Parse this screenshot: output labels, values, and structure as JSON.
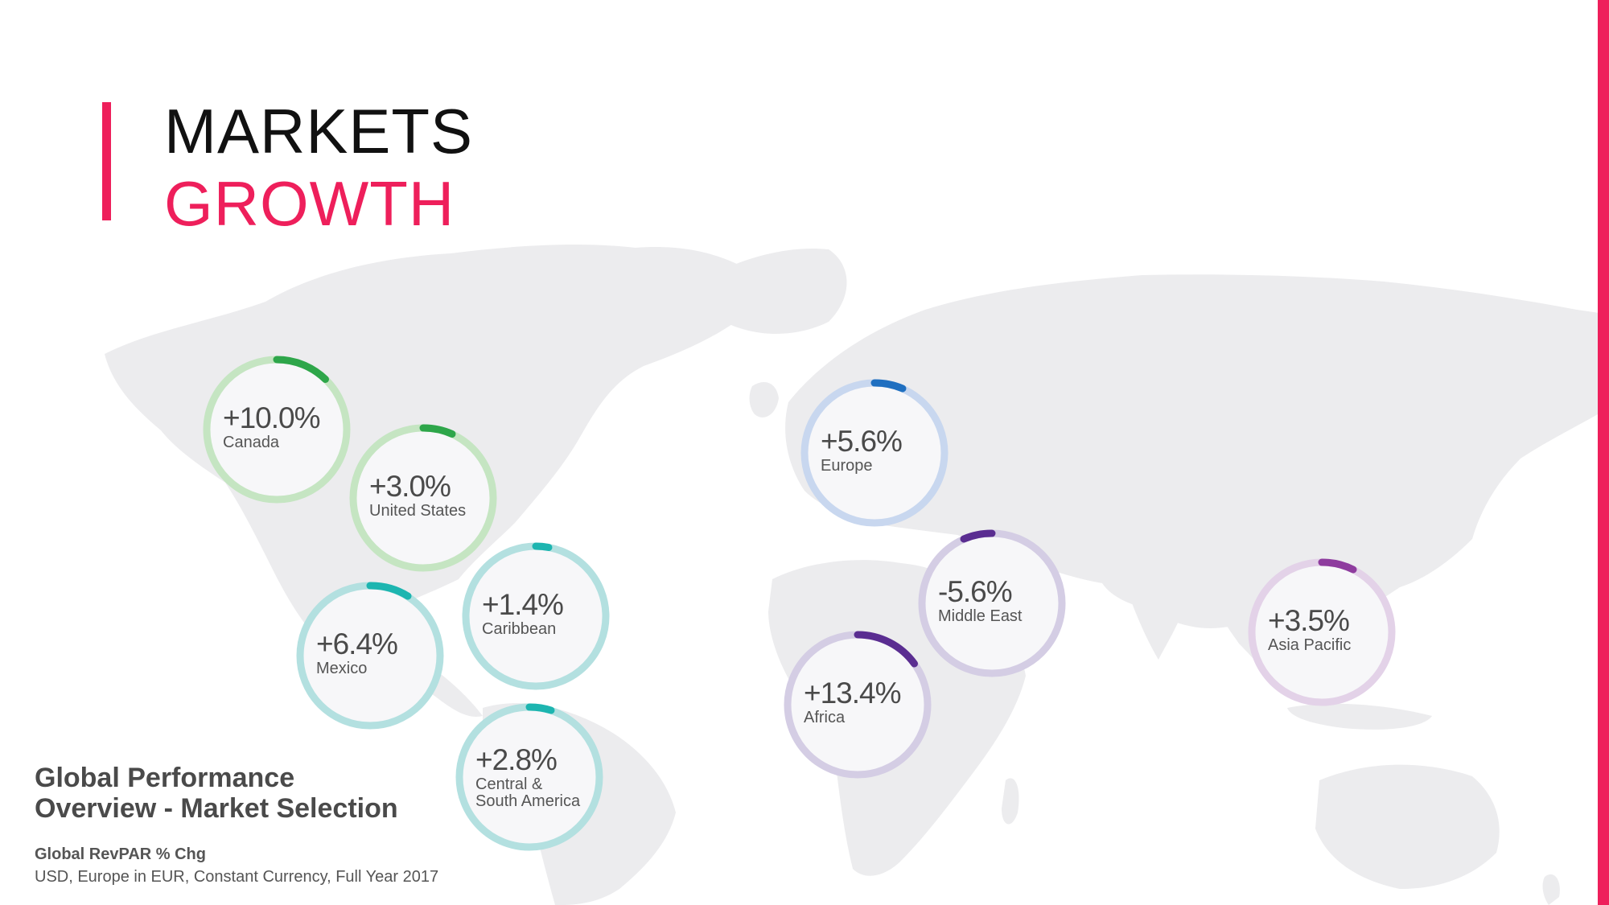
{
  "slide": {
    "title_line_1": "MARKETS",
    "title_line_2": "GROWTH",
    "accent_color": "#ee1f5b"
  },
  "map": {
    "land_color": "#ececee"
  },
  "markets": [
    {
      "id": "canada",
      "value": "+10.0%",
      "label": "Canada",
      "ring_color": "#c5e5c2",
      "arc_color": "#2ea64a"
    },
    {
      "id": "united-states",
      "value": "+3.0%",
      "label": "United States",
      "ring_color": "#c5e5c2",
      "arc_color": "#2ea64a"
    },
    {
      "id": "mexico",
      "value": "+6.4%",
      "label": "Mexico",
      "ring_color": "#b3e0e0",
      "arc_color": "#1db5b0"
    },
    {
      "id": "caribbean",
      "value": "+1.4%",
      "label": "Caribbean",
      "ring_color": "#b3e0e0",
      "arc_color": "#1db5b0"
    },
    {
      "id": "central-south-america",
      "value": "+2.8%",
      "label": "Central & South America",
      "label_lines": [
        "Central &",
        "South America"
      ],
      "ring_color": "#b3e0e0",
      "arc_color": "#1db5b0"
    },
    {
      "id": "europe",
      "value": "+5.6%",
      "label": "Europe",
      "ring_color": "#c8d7ef",
      "arc_color": "#1f6fc0"
    },
    {
      "id": "middle-east",
      "value": "-5.6%",
      "label": "Middle East",
      "ring_color": "#d4cde4",
      "arc_color": "#5a2d91"
    },
    {
      "id": "africa",
      "value": "+13.4%",
      "label": "Africa",
      "ring_color": "#d4cde4",
      "arc_color": "#5a2d91"
    },
    {
      "id": "asia-pacific",
      "value": "+3.5%",
      "label": "Asia Pacific",
      "ring_color": "#e3d2e8",
      "arc_color": "#8e3c9e"
    }
  ],
  "info": {
    "heading_line_1": "Global Performance",
    "heading_line_2": "Overview - Market Selection",
    "metric": "Global RevPAR % Chg",
    "note": "USD, Europe in EUR, Constant Currency, Full Year 2017"
  }
}
